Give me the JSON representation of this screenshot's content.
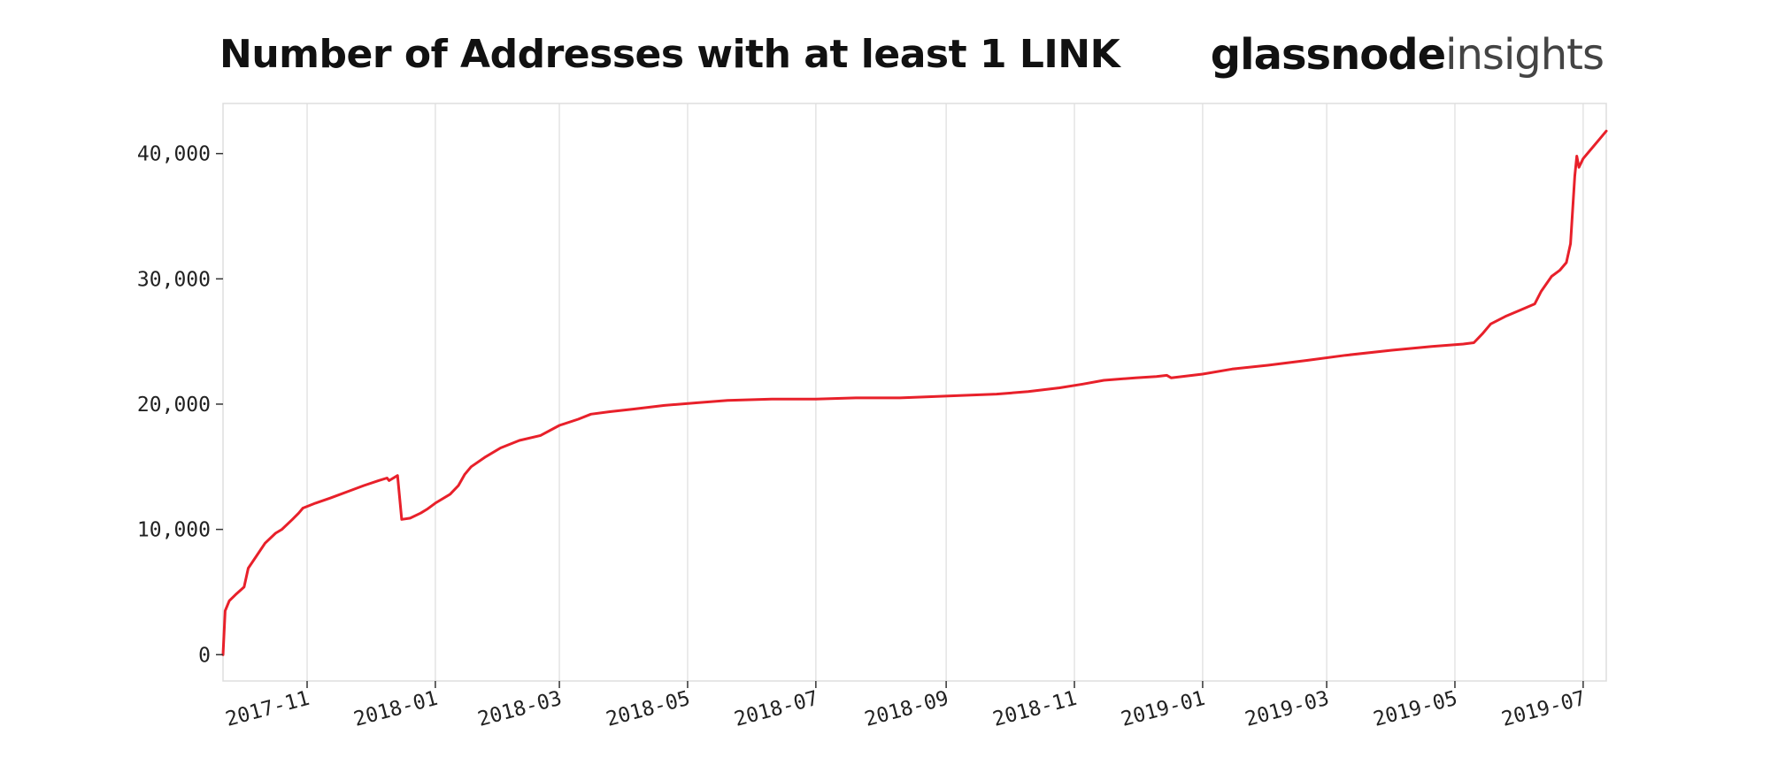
{
  "title": "Number of Addresses with at least 1 LINK",
  "brand": {
    "name": "glassnode",
    "product": "insights"
  },
  "chart_data": {
    "type": "line",
    "title": "Number of Addresses with at least 1 LINK",
    "xlabel": "",
    "ylabel": "",
    "x_start": "2017-09-22",
    "x_end": "2019-07-12",
    "ylim": [
      -2100,
      44000
    ],
    "grid": "x",
    "series": [
      {
        "color": "#e8202a",
        "points": [
          [
            "2017-09-22",
            0
          ],
          [
            "2017-09-23",
            3500
          ],
          [
            "2017-09-25",
            4300
          ],
          [
            "2017-09-28",
            4800
          ],
          [
            "2017-10-02",
            5400
          ],
          [
            "2017-10-04",
            6900
          ],
          [
            "2017-10-08",
            7900
          ],
          [
            "2017-10-12",
            8900
          ],
          [
            "2017-10-17",
            9700
          ],
          [
            "2017-10-20",
            10000
          ],
          [
            "2017-10-25",
            10800
          ],
          [
            "2017-10-28",
            11300
          ],
          [
            "2017-10-30",
            11700
          ],
          [
            "2017-11-05",
            12100
          ],
          [
            "2017-11-12",
            12500
          ],
          [
            "2017-11-20",
            13000
          ],
          [
            "2017-11-28",
            13500
          ],
          [
            "2017-12-05",
            13900
          ],
          [
            "2017-12-09",
            14100
          ],
          [
            "2017-12-10",
            13900
          ],
          [
            "2017-12-14",
            14300
          ],
          [
            "2017-12-16",
            10800
          ],
          [
            "2017-12-20",
            10900
          ],
          [
            "2017-12-25",
            11300
          ],
          [
            "2017-12-28",
            11600
          ],
          [
            "2018-01-01",
            12100
          ],
          [
            "2018-01-08",
            12800
          ],
          [
            "2018-01-12",
            13500
          ],
          [
            "2018-01-15",
            14400
          ],
          [
            "2018-01-18",
            15000
          ],
          [
            "2018-01-25",
            15800
          ],
          [
            "2018-02-01",
            16500
          ],
          [
            "2018-02-10",
            17100
          ],
          [
            "2018-02-20",
            17500
          ],
          [
            "2018-03-01",
            18300
          ],
          [
            "2018-03-10",
            18800
          ],
          [
            "2018-03-16",
            19200
          ],
          [
            "2018-03-25",
            19400
          ],
          [
            "2018-04-05",
            19600
          ],
          [
            "2018-04-20",
            19900
          ],
          [
            "2018-05-05",
            20100
          ],
          [
            "2018-05-20",
            20300
          ],
          [
            "2018-06-10",
            20400
          ],
          [
            "2018-07-01",
            20400
          ],
          [
            "2018-07-20",
            20500
          ],
          [
            "2018-08-10",
            20500
          ],
          [
            "2018-08-25",
            20600
          ],
          [
            "2018-09-10",
            20700
          ],
          [
            "2018-09-25",
            20800
          ],
          [
            "2018-10-10",
            21000
          ],
          [
            "2018-10-25",
            21300
          ],
          [
            "2018-11-05",
            21600
          ],
          [
            "2018-11-15",
            21900
          ],
          [
            "2018-11-30",
            22100
          ],
          [
            "2018-12-10",
            22200
          ],
          [
            "2018-12-15",
            22300
          ],
          [
            "2018-12-17",
            22100
          ],
          [
            "2019-01-01",
            22400
          ],
          [
            "2019-01-15",
            22800
          ],
          [
            "2019-02-01",
            23100
          ],
          [
            "2019-02-20",
            23500
          ],
          [
            "2019-03-10",
            23900
          ],
          [
            "2019-04-01",
            24300
          ],
          [
            "2019-04-20",
            24600
          ],
          [
            "2019-05-05",
            24800
          ],
          [
            "2019-05-10",
            24900
          ],
          [
            "2019-05-14",
            25600
          ],
          [
            "2019-05-18",
            26400
          ],
          [
            "2019-05-25",
            27000
          ],
          [
            "2019-06-01",
            27500
          ],
          [
            "2019-06-08",
            28000
          ],
          [
            "2019-06-11",
            29000
          ],
          [
            "2019-06-16",
            30200
          ],
          [
            "2019-06-20",
            30700
          ],
          [
            "2019-06-23",
            31300
          ],
          [
            "2019-06-25",
            32800
          ],
          [
            "2019-06-26",
            35500
          ],
          [
            "2019-06-27",
            38200
          ],
          [
            "2019-06-28",
            39800
          ],
          [
            "2019-06-29",
            38900
          ],
          [
            "2019-07-01",
            39600
          ],
          [
            "2019-07-05",
            40400
          ],
          [
            "2019-07-09",
            41200
          ],
          [
            "2019-07-12",
            41800
          ]
        ]
      }
    ],
    "y_ticks": [
      {
        "value": 0,
        "label": "0"
      },
      {
        "value": 10000,
        "label": "10,000"
      },
      {
        "value": 20000,
        "label": "20,000"
      },
      {
        "value": 30000,
        "label": "30,000"
      },
      {
        "value": 40000,
        "label": "40,000"
      }
    ],
    "x_ticks": [
      {
        "date": "2017-11-01",
        "label": "2017-11"
      },
      {
        "date": "2018-01-01",
        "label": "2018-01"
      },
      {
        "date": "2018-03-01",
        "label": "2018-03"
      },
      {
        "date": "2018-05-01",
        "label": "2018-05"
      },
      {
        "date": "2018-07-01",
        "label": "2018-07"
      },
      {
        "date": "2018-09-01",
        "label": "2018-09"
      },
      {
        "date": "2018-11-01",
        "label": "2018-11"
      },
      {
        "date": "2019-01-01",
        "label": "2019-01"
      },
      {
        "date": "2019-03-01",
        "label": "2019-03"
      },
      {
        "date": "2019-05-01",
        "label": "2019-05"
      },
      {
        "date": "2019-07-01",
        "label": "2019-07"
      }
    ]
  }
}
